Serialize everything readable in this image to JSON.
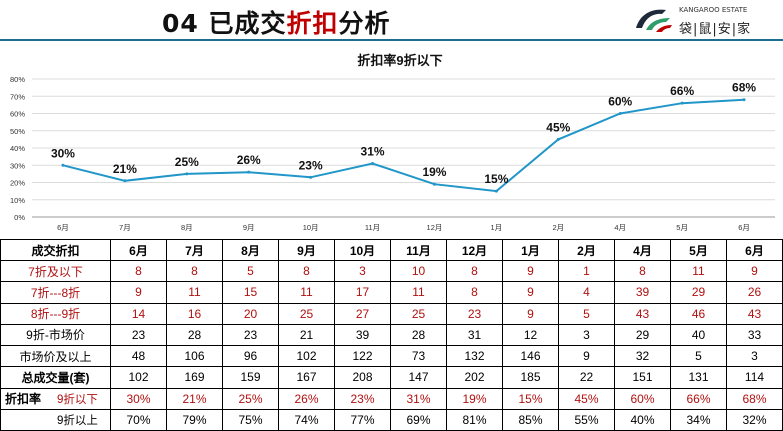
{
  "header": {
    "title_prefix": "04 已成交",
    "title_highlight": "折扣",
    "title_suffix": "分析",
    "logo_en": "KANGAROO ESTATE",
    "logo_cn": "袋|鼠|安|家"
  },
  "colors": {
    "accent": "#c00000",
    "line": "#2196c8",
    "divider": "#1a6f8f"
  },
  "chart_data": {
    "type": "line",
    "title": "折扣率9折以下",
    "categories": [
      "6月",
      "7月",
      "8月",
      "9月",
      "10月",
      "11月",
      "12月",
      "1月",
      "2月",
      "4月",
      "5月",
      "6月"
    ],
    "values": [
      30,
      21,
      25,
      26,
      23,
      31,
      19,
      15,
      45,
      60,
      66,
      68
    ],
    "data_labels": [
      "30%",
      "21%",
      "25%",
      "26%",
      "23%",
      "31%",
      "19%",
      "15%",
      "45%",
      "60%",
      "66%",
      "68%"
    ],
    "y_ticks": [
      "0%",
      "10%",
      "20%",
      "30%",
      "40%",
      "50%",
      "60%",
      "70%",
      "80%"
    ],
    "ylim": [
      0,
      80
    ],
    "grid": true,
    "legend": "none"
  },
  "table": {
    "header": [
      "成交折扣",
      "6月",
      "7月",
      "8月",
      "9月",
      "10月",
      "11月",
      "12月",
      "1月",
      "2月",
      "4月",
      "5月",
      "6月"
    ],
    "rows": [
      {
        "label": "7折及以下",
        "values": [
          "8",
          "8",
          "5",
          "8",
          "3",
          "10",
          "8",
          "9",
          "1",
          "8",
          "11",
          "9"
        ],
        "style": "red"
      },
      {
        "label": "7折---8折",
        "values": [
          "9",
          "11",
          "15",
          "11",
          "17",
          "11",
          "8",
          "9",
          "4",
          "39",
          "29",
          "26"
        ],
        "style": "red"
      },
      {
        "label": "8折---9折",
        "values": [
          "14",
          "16",
          "20",
          "25",
          "27",
          "25",
          "23",
          "9",
          "5",
          "43",
          "46",
          "43"
        ],
        "style": "red"
      },
      {
        "label": "9折-市场价",
        "values": [
          "23",
          "28",
          "23",
          "21",
          "39",
          "28",
          "31",
          "12",
          "3",
          "29",
          "40",
          "33"
        ],
        "style": "plain"
      },
      {
        "label": "市场价及以上",
        "values": [
          "48",
          "106",
          "96",
          "102",
          "122",
          "73",
          "132",
          "146",
          "9",
          "32",
          "5",
          "3"
        ],
        "style": "plain"
      },
      {
        "label": "总成交量(套)",
        "values": [
          "102",
          "169",
          "159",
          "167",
          "208",
          "147",
          "202",
          "185",
          "22",
          "151",
          "131",
          "114"
        ],
        "style": "bold"
      }
    ],
    "rate_label": "折扣率",
    "rate_rows": [
      {
        "label": "9折以下",
        "values": [
          "30%",
          "21%",
          "25%",
          "26%",
          "23%",
          "31%",
          "19%",
          "15%",
          "45%",
          "60%",
          "66%",
          "68%"
        ],
        "style": "red"
      },
      {
        "label": "9折以上",
        "values": [
          "70%",
          "79%",
          "75%",
          "74%",
          "77%",
          "69%",
          "81%",
          "85%",
          "55%",
          "40%",
          "34%",
          "32%"
        ],
        "style": "plain"
      }
    ]
  }
}
